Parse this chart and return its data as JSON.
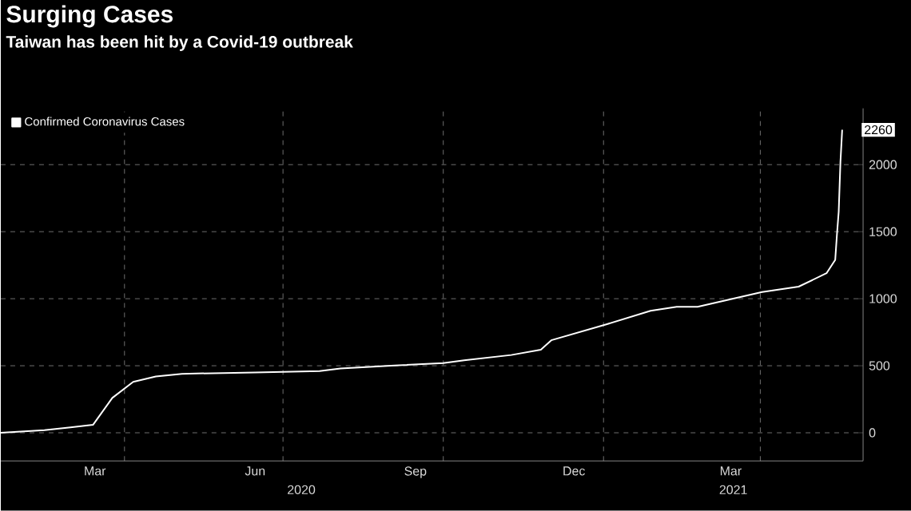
{
  "chart_data": {
    "type": "line",
    "title": "Surging Cases",
    "subtitle": "Taiwan has been hit by a Covid-19 outbreak",
    "x": [
      "2020-01-21",
      "2020-02-15",
      "2020-03-01",
      "2020-03-14",
      "2020-03-25",
      "2020-04-06",
      "2020-04-19",
      "2020-05-04",
      "2020-06-15",
      "2020-07-22",
      "2020-08-03",
      "2020-09-01",
      "2020-10-01",
      "2020-10-13",
      "2020-11-09",
      "2020-11-26",
      "2020-12-02",
      "2021-01-03",
      "2021-01-28",
      "2021-02-12",
      "2021-02-24",
      "2021-04-02",
      "2021-04-23",
      "2021-05-09",
      "2021-05-14",
      "2021-05-15",
      "2021-05-16",
      "2021-05-17",
      "2021-05-18"
    ],
    "series": [
      {
        "name": "Confirmed Coronavirus Cases",
        "color": "#ffffff",
        "values": [
          0,
          20,
          40,
          60,
          260,
          380,
          420,
          440,
          450,
          460,
          480,
          500,
          520,
          540,
          580,
          620,
          690,
          810,
          910,
          940,
          940,
          1050,
          1090,
          1190,
          1290,
          1480,
          1650,
          2020,
          2260
        ],
        "value_labels": [
          null,
          null,
          null,
          null,
          null,
          null,
          null,
          null,
          null,
          null,
          null,
          null,
          null,
          null,
          null,
          null,
          null,
          null,
          null,
          null,
          null,
          null,
          null,
          null,
          null,
          null,
          null,
          null,
          "2260"
        ]
      }
    ],
    "xlim": [
      "2020-01-21",
      "2021-05-30"
    ],
    "xticks": [
      {
        "value": "2020-03-15",
        "label": "Mar"
      },
      {
        "value": "2020-06-15",
        "label": "Jun"
      },
      {
        "value": "2020-09-15",
        "label": "Sep"
      },
      {
        "value": "2020-12-15",
        "label": "Dec"
      },
      {
        "value": "2021-03-15",
        "label": "Mar"
      },
      {
        "value": "2020-04-01",
        "label": null
      },
      {
        "value": "2020-07-01",
        "label": null
      },
      {
        "value": "2020-10-01",
        "label": null
      },
      {
        "value": "2021-01-01",
        "label": null
      },
      {
        "value": "2021-04-01",
        "label": null
      }
    ],
    "annotations": [
      "2020",
      "2021"
    ],
    "ylim": [
      -210,
      2420
    ],
    "yticks": [
      0,
      500,
      1000,
      1500,
      2000
    ],
    "grid": true,
    "legend": "top left",
    "marker": "none",
    "line_style": "solid"
  }
}
